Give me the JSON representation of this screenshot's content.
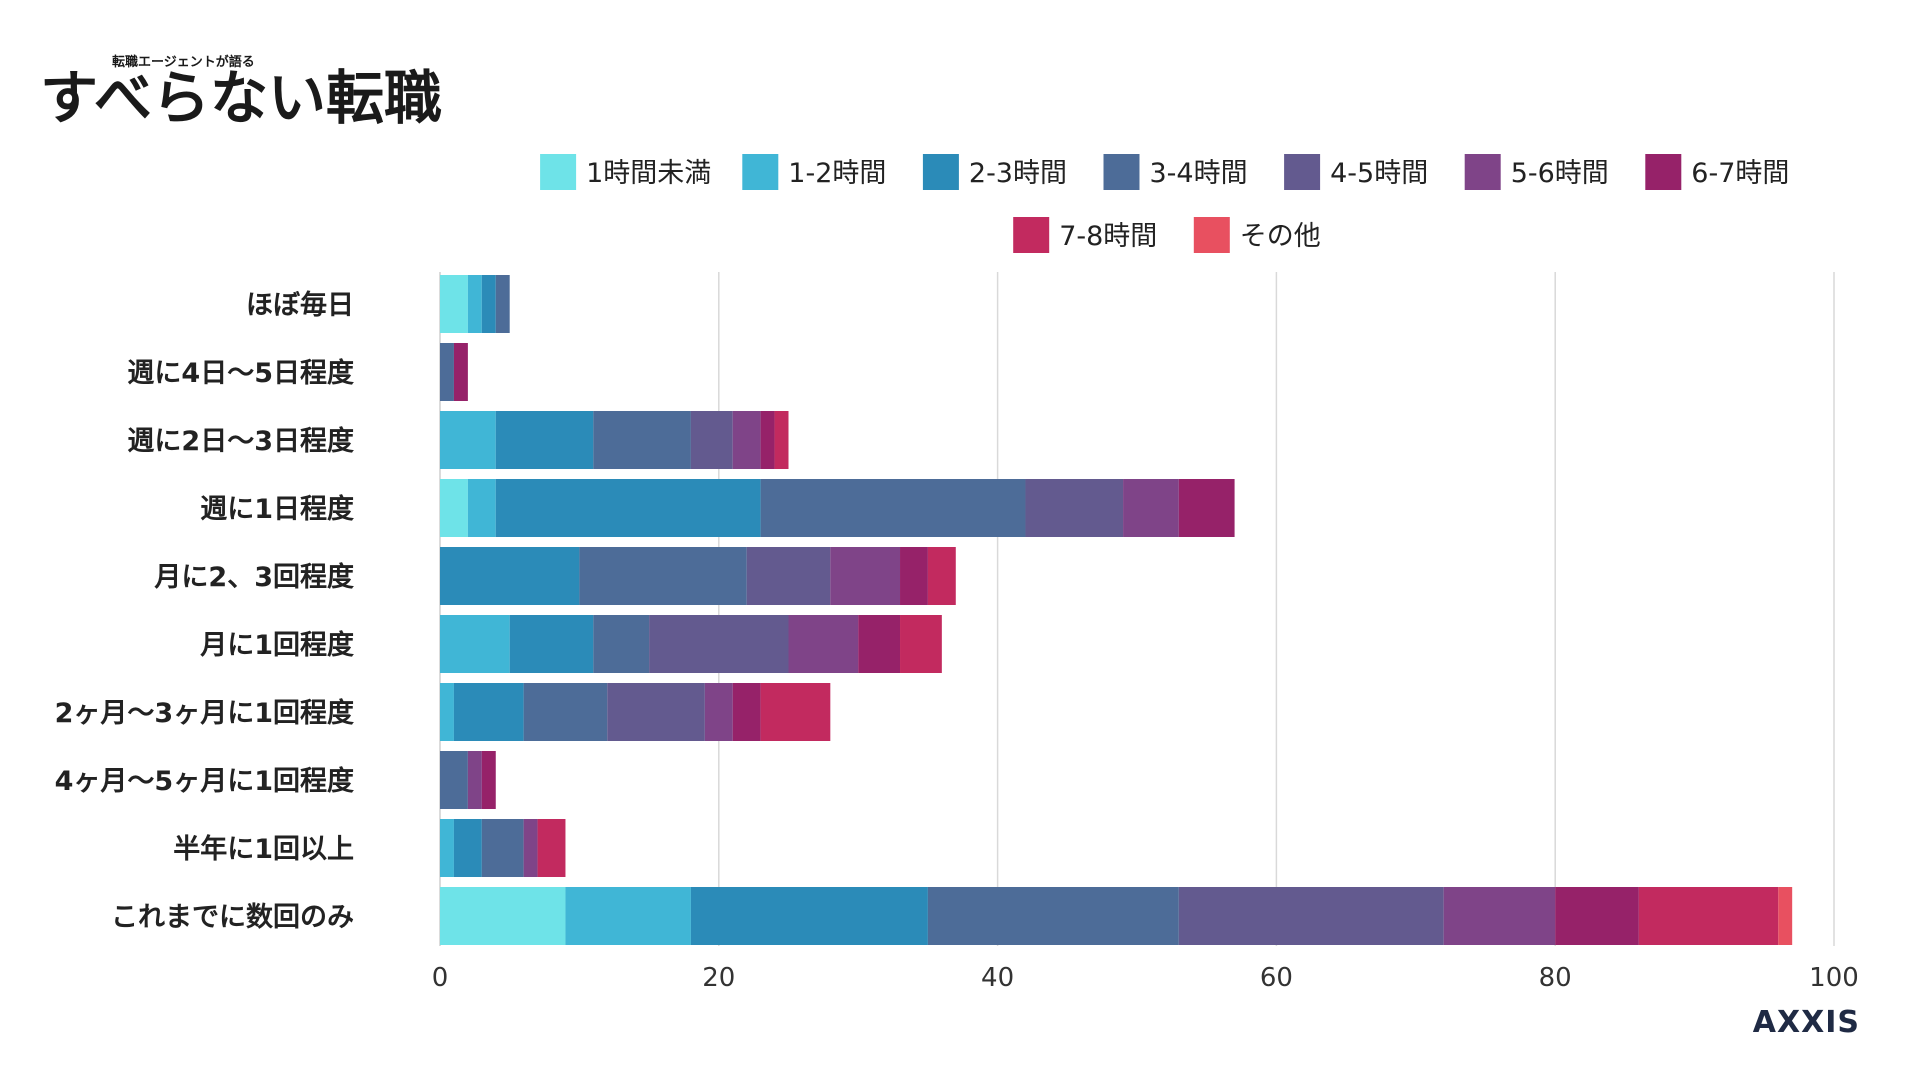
{
  "logo": {
    "small_text": "転職エージェントが語る",
    "main_text": "すべらない転職"
  },
  "brand": {
    "text": "AXXIS"
  },
  "chart_data": {
    "type": "bar",
    "orientation": "horizontal",
    "stacked": true,
    "title": "",
    "xlabel": "",
    "ylabel": "",
    "xlim": [
      0,
      100
    ],
    "x_ticks": [
      0,
      20,
      40,
      60,
      80,
      100
    ],
    "grid": true,
    "legend_position": "top",
    "categories": [
      "ほぼ毎日",
      "週に4日〜5日程度",
      "週に2日〜3日程度",
      "週に1日程度",
      "月に2、3回程度",
      "月に1回程度",
      "2ヶ月〜3ヶ月に1回程度",
      "4ヶ月〜5ヶ月に1回程度",
      "半年に1回以上",
      "これまでに数回のみ"
    ],
    "series": [
      {
        "name": "1時間未満",
        "color": "#6ee3e8",
        "values": [
          2,
          0,
          0,
          2,
          0,
          0,
          0,
          0,
          0,
          9
        ]
      },
      {
        "name": "1-2時間",
        "color": "#40b6d6",
        "values": [
          1,
          0,
          4,
          2,
          0,
          5,
          1,
          0,
          1,
          9
        ]
      },
      {
        "name": "2-3時間",
        "color": "#2b8bb8",
        "values": [
          1,
          0,
          7,
          19,
          10,
          6,
          5,
          0,
          2,
          17
        ]
      },
      {
        "name": "3-4時間",
        "color": "#4d6c98",
        "values": [
          1,
          1,
          7,
          19,
          12,
          4,
          6,
          2,
          3,
          18
        ]
      },
      {
        "name": "4-5時間",
        "color": "#635a8f",
        "values": [
          0,
          0,
          3,
          7,
          6,
          10,
          7,
          0,
          0,
          19
        ]
      },
      {
        "name": "5-6時間",
        "color": "#7f4488",
        "values": [
          0,
          0,
          2,
          4,
          5,
          5,
          2,
          1,
          1,
          8
        ]
      },
      {
        "name": "6-7時間",
        "color": "#962269",
        "values": [
          0,
          1,
          1,
          4,
          2,
          3,
          2,
          1,
          0,
          6
        ]
      },
      {
        "name": "7-8時間",
        "color": "#c22a5f",
        "values": [
          0,
          0,
          1,
          0,
          2,
          3,
          5,
          0,
          2,
          10
        ]
      },
      {
        "name": "その他",
        "color": "#e85060",
        "values": [
          0,
          0,
          0,
          0,
          0,
          0,
          0,
          0,
          0,
          1
        ]
      }
    ]
  }
}
